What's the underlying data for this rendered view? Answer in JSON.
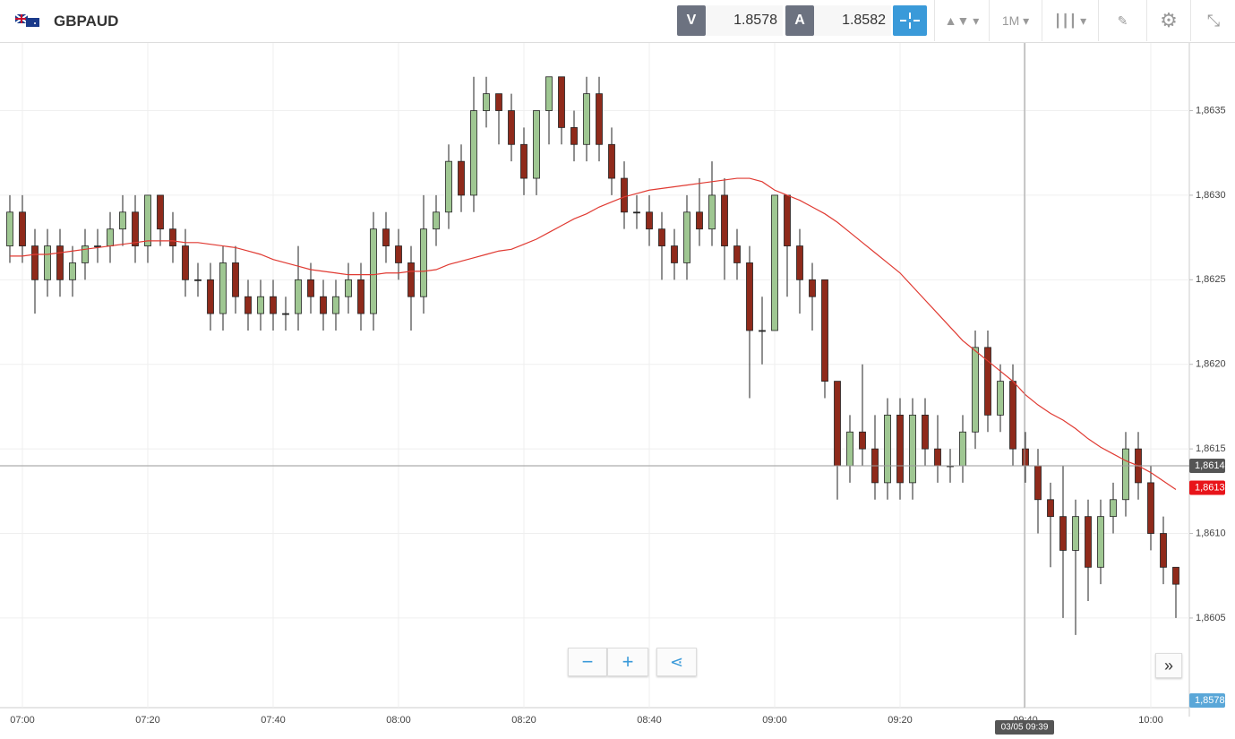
{
  "header": {
    "symbol": "GBPAUD",
    "bid_label": "V",
    "bid": "1.8578",
    "ask_label": "A",
    "ask": "1.8582",
    "timeframe": "1M"
  },
  "chart": {
    "type": "candlestick",
    "candles": [
      [
        1.8627,
        1.863,
        1.8626,
        1.8629
      ],
      [
        1.8629,
        1.863,
        1.8626,
        1.8627
      ],
      [
        1.8627,
        1.8628,
        1.8623,
        1.8625
      ],
      [
        1.8625,
        1.8628,
        1.8624,
        1.8627
      ],
      [
        1.8627,
        1.8628,
        1.8624,
        1.8625
      ],
      [
        1.8625,
        1.8627,
        1.8624,
        1.8626
      ],
      [
        1.8626,
        1.8628,
        1.8625,
        1.8627
      ],
      [
        1.8627,
        1.8628,
        1.8626,
        1.8627
      ],
      [
        1.8627,
        1.8629,
        1.8626,
        1.8628
      ],
      [
        1.8628,
        1.863,
        1.8627,
        1.8629
      ],
      [
        1.8629,
        1.863,
        1.8626,
        1.8627
      ],
      [
        1.8627,
        1.863,
        1.8626,
        1.863
      ],
      [
        1.863,
        1.863,
        1.8627,
        1.8628
      ],
      [
        1.8628,
        1.8629,
        1.8626,
        1.8627
      ],
      [
        1.8627,
        1.8628,
        1.8624,
        1.8625
      ],
      [
        1.8625,
        1.8626,
        1.8624,
        1.8625
      ],
      [
        1.8625,
        1.8626,
        1.8622,
        1.8623
      ],
      [
        1.8623,
        1.8627,
        1.8622,
        1.8626
      ],
      [
        1.8626,
        1.8627,
        1.8623,
        1.8624
      ],
      [
        1.8624,
        1.8625,
        1.8622,
        1.8623
      ],
      [
        1.8623,
        1.8625,
        1.8622,
        1.8624
      ],
      [
        1.8624,
        1.8625,
        1.8622,
        1.8623
      ],
      [
        1.8623,
        1.8624,
        1.8622,
        1.8623
      ],
      [
        1.8623,
        1.8627,
        1.8622,
        1.8625
      ],
      [
        1.8625,
        1.8626,
        1.8623,
        1.8624
      ],
      [
        1.8624,
        1.8625,
        1.8622,
        1.8623
      ],
      [
        1.8623,
        1.8625,
        1.8622,
        1.8624
      ],
      [
        1.8624,
        1.8626,
        1.8623,
        1.8625
      ],
      [
        1.8625,
        1.8626,
        1.8622,
        1.8623
      ],
      [
        1.8623,
        1.8629,
        1.8622,
        1.8628
      ],
      [
        1.8628,
        1.8629,
        1.8626,
        1.8627
      ],
      [
        1.8627,
        1.8628,
        1.8625,
        1.8626
      ],
      [
        1.8626,
        1.8627,
        1.8622,
        1.8624
      ],
      [
        1.8624,
        1.863,
        1.8623,
        1.8628
      ],
      [
        1.8628,
        1.863,
        1.8627,
        1.8629
      ],
      [
        1.8629,
        1.8633,
        1.8628,
        1.8632
      ],
      [
        1.8632,
        1.8633,
        1.8629,
        1.863
      ],
      [
        1.863,
        1.8637,
        1.8629,
        1.8635
      ],
      [
        1.8635,
        1.8637,
        1.8634,
        1.8636
      ],
      [
        1.8636,
        1.8636,
        1.8633,
        1.8635
      ],
      [
        1.8635,
        1.8636,
        1.8632,
        1.8633
      ],
      [
        1.8633,
        1.8634,
        1.863,
        1.8631
      ],
      [
        1.8631,
        1.8635,
        1.863,
        1.8635
      ],
      [
        1.8635,
        1.8637,
        1.8633,
        1.8637
      ],
      [
        1.8637,
        1.8637,
        1.8633,
        1.8634
      ],
      [
        1.8634,
        1.8635,
        1.8632,
        1.8633
      ],
      [
        1.8633,
        1.8637,
        1.8632,
        1.8636
      ],
      [
        1.8636,
        1.8637,
        1.8632,
        1.8633
      ],
      [
        1.8633,
        1.8634,
        1.863,
        1.8631
      ],
      [
        1.8631,
        1.8632,
        1.8628,
        1.8629
      ],
      [
        1.8629,
        1.863,
        1.8628,
        1.8629
      ],
      [
        1.8629,
        1.863,
        1.8627,
        1.8628
      ],
      [
        1.8628,
        1.8629,
        1.8625,
        1.8627
      ],
      [
        1.8627,
        1.8628,
        1.8625,
        1.8626
      ],
      [
        1.8626,
        1.863,
        1.8625,
        1.8629
      ],
      [
        1.8629,
        1.8631,
        1.8627,
        1.8628
      ],
      [
        1.8628,
        1.8632,
        1.8627,
        1.863
      ],
      [
        1.863,
        1.8631,
        1.8625,
        1.8627
      ],
      [
        1.8627,
        1.8628,
        1.8625,
        1.8626
      ],
      [
        1.8626,
        1.8627,
        1.8618,
        1.8622
      ],
      [
        1.8622,
        1.8624,
        1.862,
        1.8622
      ],
      [
        1.8622,
        1.863,
        1.8622,
        1.863
      ],
      [
        1.863,
        1.863,
        1.8624,
        1.8627
      ],
      [
        1.8627,
        1.8628,
        1.8623,
        1.8625
      ],
      [
        1.8625,
        1.8626,
        1.8622,
        1.8624
      ],
      [
        1.8625,
        1.8625,
        1.8618,
        1.8619
      ],
      [
        1.8619,
        1.8619,
        1.8612,
        1.8614
      ],
      [
        1.8614,
        1.8617,
        1.8613,
        1.8616
      ],
      [
        1.8616,
        1.862,
        1.8614,
        1.8615
      ],
      [
        1.8615,
        1.8617,
        1.8612,
        1.8613
      ],
      [
        1.8613,
        1.8618,
        1.8612,
        1.8617
      ],
      [
        1.8617,
        1.8618,
        1.8612,
        1.8613
      ],
      [
        1.8613,
        1.8618,
        1.8612,
        1.8617
      ],
      [
        1.8617,
        1.8618,
        1.8614,
        1.8615
      ],
      [
        1.8615,
        1.8617,
        1.8613,
        1.8614
      ],
      [
        1.8614,
        1.8615,
        1.8613,
        1.8614
      ],
      [
        1.8614,
        1.8617,
        1.8613,
        1.8616
      ],
      [
        1.8616,
        1.8622,
        1.8615,
        1.8621
      ],
      [
        1.8621,
        1.8622,
        1.8616,
        1.8617
      ],
      [
        1.8617,
        1.862,
        1.8616,
        1.8619
      ],
      [
        1.8619,
        1.862,
        1.8614,
        1.8615
      ],
      [
        1.8615,
        1.8616,
        1.8613,
        1.8614
      ],
      [
        1.8614,
        1.8615,
        1.861,
        1.8612
      ],
      [
        1.8612,
        1.8613,
        1.8608,
        1.8611
      ],
      [
        1.8611,
        1.8614,
        1.8605,
        1.8609
      ],
      [
        1.8609,
        1.8612,
        1.8604,
        1.8611
      ],
      [
        1.8611,
        1.8612,
        1.8606,
        1.8608
      ],
      [
        1.8608,
        1.8612,
        1.8607,
        1.8611
      ],
      [
        1.8611,
        1.8613,
        1.861,
        1.8612
      ],
      [
        1.8612,
        1.8616,
        1.8611,
        1.8615
      ],
      [
        1.8615,
        1.8616,
        1.8612,
        1.8613
      ],
      [
        1.8613,
        1.8614,
        1.8609,
        1.861
      ],
      [
        1.861,
        1.8611,
        1.8607,
        1.8608
      ],
      [
        1.8608,
        1.8608,
        1.8605,
        1.8607
      ]
    ],
    "ma": [
      1.86264,
      1.86264,
      1.86265,
      1.86265,
      1.86266,
      1.86267,
      1.86268,
      1.86269,
      1.8627,
      1.86271,
      1.86272,
      1.86273,
      1.86273,
      1.86273,
      1.86272,
      1.86272,
      1.86271,
      1.8627,
      1.86269,
      1.86267,
      1.86265,
      1.86262,
      1.8626,
      1.86258,
      1.86256,
      1.86255,
      1.86254,
      1.86253,
      1.86253,
      1.86253,
      1.86254,
      1.86254,
      1.86255,
      1.86255,
      1.86256,
      1.86259,
      1.86261,
      1.86263,
      1.86265,
      1.86267,
      1.86268,
      1.86271,
      1.86274,
      1.86278,
      1.86282,
      1.86286,
      1.86289,
      1.86293,
      1.86296,
      1.86299,
      1.86301,
      1.86303,
      1.86304,
      1.86305,
      1.86306,
      1.86307,
      1.86308,
      1.86309,
      1.8631,
      1.8631,
      1.86308,
      1.86303,
      1.863,
      1.86297,
      1.86293,
      1.86289,
      1.86284,
      1.86278,
      1.86272,
      1.86266,
      1.8626,
      1.86254,
      1.86246,
      1.86238,
      1.8623,
      1.86222,
      1.86214,
      1.86208,
      1.86202,
      1.86196,
      1.8619,
      1.86182,
      1.86176,
      1.86171,
      1.86167,
      1.86162,
      1.86156,
      1.86151,
      1.86147,
      1.86143,
      1.8614,
      1.86136,
      1.86131,
      1.86126
    ],
    "ylim": [
      1.85997,
      1.8639
    ],
    "yticks": [
      {
        "value": 1.8605,
        "label": "1,8605"
      },
      {
        "value": 1.861,
        "label": "1,8610"
      },
      {
        "value": 1.8615,
        "label": "1,8615"
      },
      {
        "value": 1.862,
        "label": "1,8620"
      },
      {
        "value": 1.8625,
        "label": "1,8625"
      },
      {
        "value": 1.863,
        "label": "1,8630"
      },
      {
        "value": 1.8635,
        "label": "1,8635"
      }
    ],
    "xticks": [
      "07:00",
      "07:20",
      "07:40",
      "08:00",
      "08:20",
      "08:40",
      "09:00",
      "09:20",
      "09:40",
      "10:00"
    ],
    "crosshair": {
      "price": {
        "value": 1.8614,
        "label": "1,8614"
      },
      "time": "03/05 09:39"
    },
    "last_price": {
      "value": 1.86127,
      "label": "1,8613"
    },
    "bid_marker": "1,8578",
    "up_color": "#9fc792",
    "down_color": "#8f2a1b",
    "ma_color": "#e03a32",
    "grid": true
  }
}
